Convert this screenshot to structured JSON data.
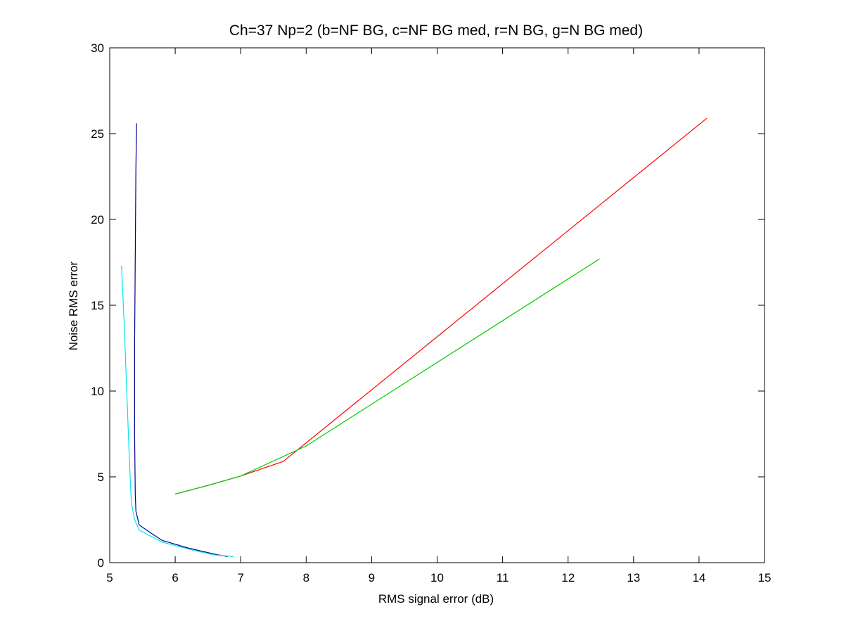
{
  "chart_data": {
    "type": "line",
    "title": "Ch=37 Np=2 (b=NF BG, c=NF BG med, r=N BG, g=N BG med)",
    "xlabel": "RMS signal error (dB)",
    "ylabel": "Noise RMS error",
    "xlim": [
      5,
      15
    ],
    "ylim": [
      0,
      30
    ],
    "xticks": [
      5,
      6,
      7,
      8,
      9,
      10,
      11,
      12,
      13,
      14,
      15
    ],
    "yticks": [
      0,
      5,
      10,
      15,
      20,
      25,
      30
    ],
    "grid": false,
    "box": true,
    "series": [
      {
        "color": "#00008b",
        "points": [
          [
            5.41,
            25.6
          ],
          [
            5.4,
            23.0
          ],
          [
            5.39,
            17.8
          ],
          [
            5.38,
            12.6
          ],
          [
            5.38,
            7.5
          ],
          [
            5.39,
            4.0
          ],
          [
            5.4,
            3.0
          ],
          [
            5.45,
            2.2
          ],
          [
            5.6,
            1.8
          ],
          [
            5.8,
            1.3
          ],
          [
            6.2,
            0.85
          ],
          [
            6.6,
            0.5
          ],
          [
            6.8,
            0.35
          ]
        ]
      },
      {
        "color": "#00e5e5",
        "points": [
          [
            5.18,
            17.3
          ],
          [
            5.22,
            14.0
          ],
          [
            5.26,
            10.0
          ],
          [
            5.3,
            6.0
          ],
          [
            5.33,
            3.5
          ],
          [
            5.38,
            2.5
          ],
          [
            5.45,
            1.9
          ],
          [
            5.8,
            1.2
          ],
          [
            6.3,
            0.7
          ],
          [
            6.6,
            0.45
          ],
          [
            6.9,
            0.35
          ]
        ]
      },
      {
        "color": "#ff0000",
        "points": [
          [
            6.0,
            4.0
          ],
          [
            6.5,
            4.5
          ],
          [
            7.0,
            5.05
          ],
          [
            7.65,
            5.9
          ],
          [
            14.12,
            25.9
          ]
        ]
      },
      {
        "color": "#00cc00",
        "points": [
          [
            6.0,
            4.0
          ],
          [
            6.5,
            4.5
          ],
          [
            7.0,
            5.05
          ],
          [
            8.0,
            6.8
          ],
          [
            12.48,
            17.7
          ]
        ]
      }
    ]
  }
}
